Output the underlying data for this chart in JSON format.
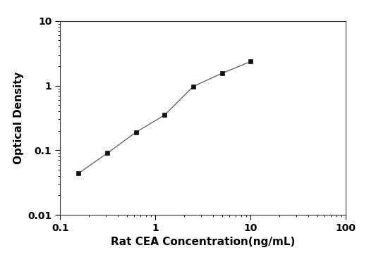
{
  "x": [
    0.156,
    0.313,
    0.625,
    1.25,
    2.5,
    5.0,
    10.0
  ],
  "y": [
    0.044,
    0.09,
    0.19,
    0.35,
    0.97,
    1.55,
    2.35
  ],
  "xlabel": "Rat CEA Concentration(ng/mL)",
  "ylabel": "Optical Density",
  "xlim": [
    0.1,
    100
  ],
  "ylim": [
    0.01,
    10
  ],
  "line_color": "#666666",
  "marker_color": "#111111",
  "marker": "s",
  "marker_size": 5,
  "linewidth": 1.0,
  "background_color": "#ffffff",
  "xlabel_fontsize": 11,
  "ylabel_fontsize": 11,
  "tick_labelsize": 10
}
